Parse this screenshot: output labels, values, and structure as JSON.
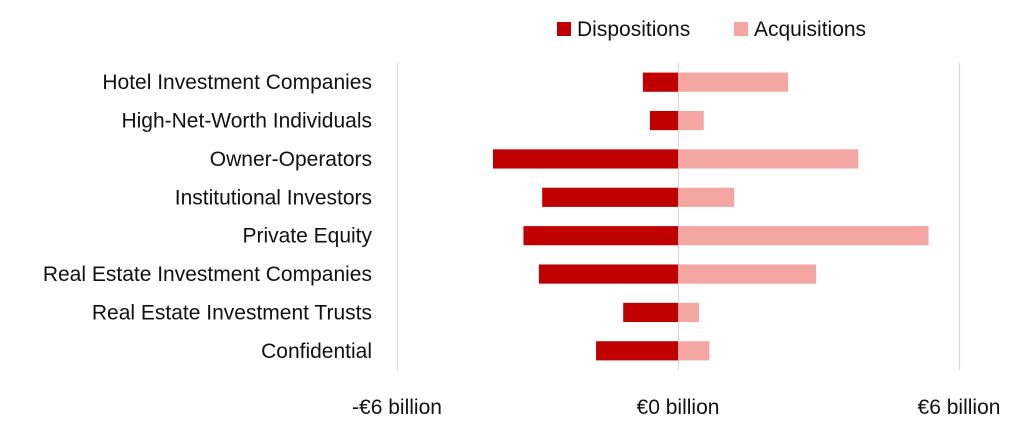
{
  "chart_data": {
    "type": "bar",
    "orientation": "horizontal",
    "stacking": "diverging",
    "title": "",
    "xlabel": "",
    "ylabel": "",
    "xlim": [
      -6,
      6
    ],
    "x_ticks": [
      -6,
      0,
      6
    ],
    "x_tick_labels": [
      "-€6 billion",
      "€0 billion",
      "€6 billion"
    ],
    "grid": "vertical",
    "legend_position": "top-right",
    "categories": [
      "Hotel Investment Companies",
      "High-Net-Worth Individuals",
      "Owner-Operators",
      "Institutional Investors",
      "Private Equity",
      "Real Estate Investment Companies",
      "Real Estate Investment Trusts",
      "Confidential"
    ],
    "series": [
      {
        "name": "Dispositions",
        "color": "#c00000",
        "values": [
          -0.75,
          -0.6,
          -3.95,
          -2.9,
          -3.3,
          -2.97,
          -1.17,
          -1.75
        ]
      },
      {
        "name": "Acquisitions",
        "color": "#f4a6a3",
        "values": [
          2.35,
          0.55,
          3.85,
          1.2,
          5.35,
          2.95,
          0.45,
          0.67
        ]
      }
    ]
  }
}
